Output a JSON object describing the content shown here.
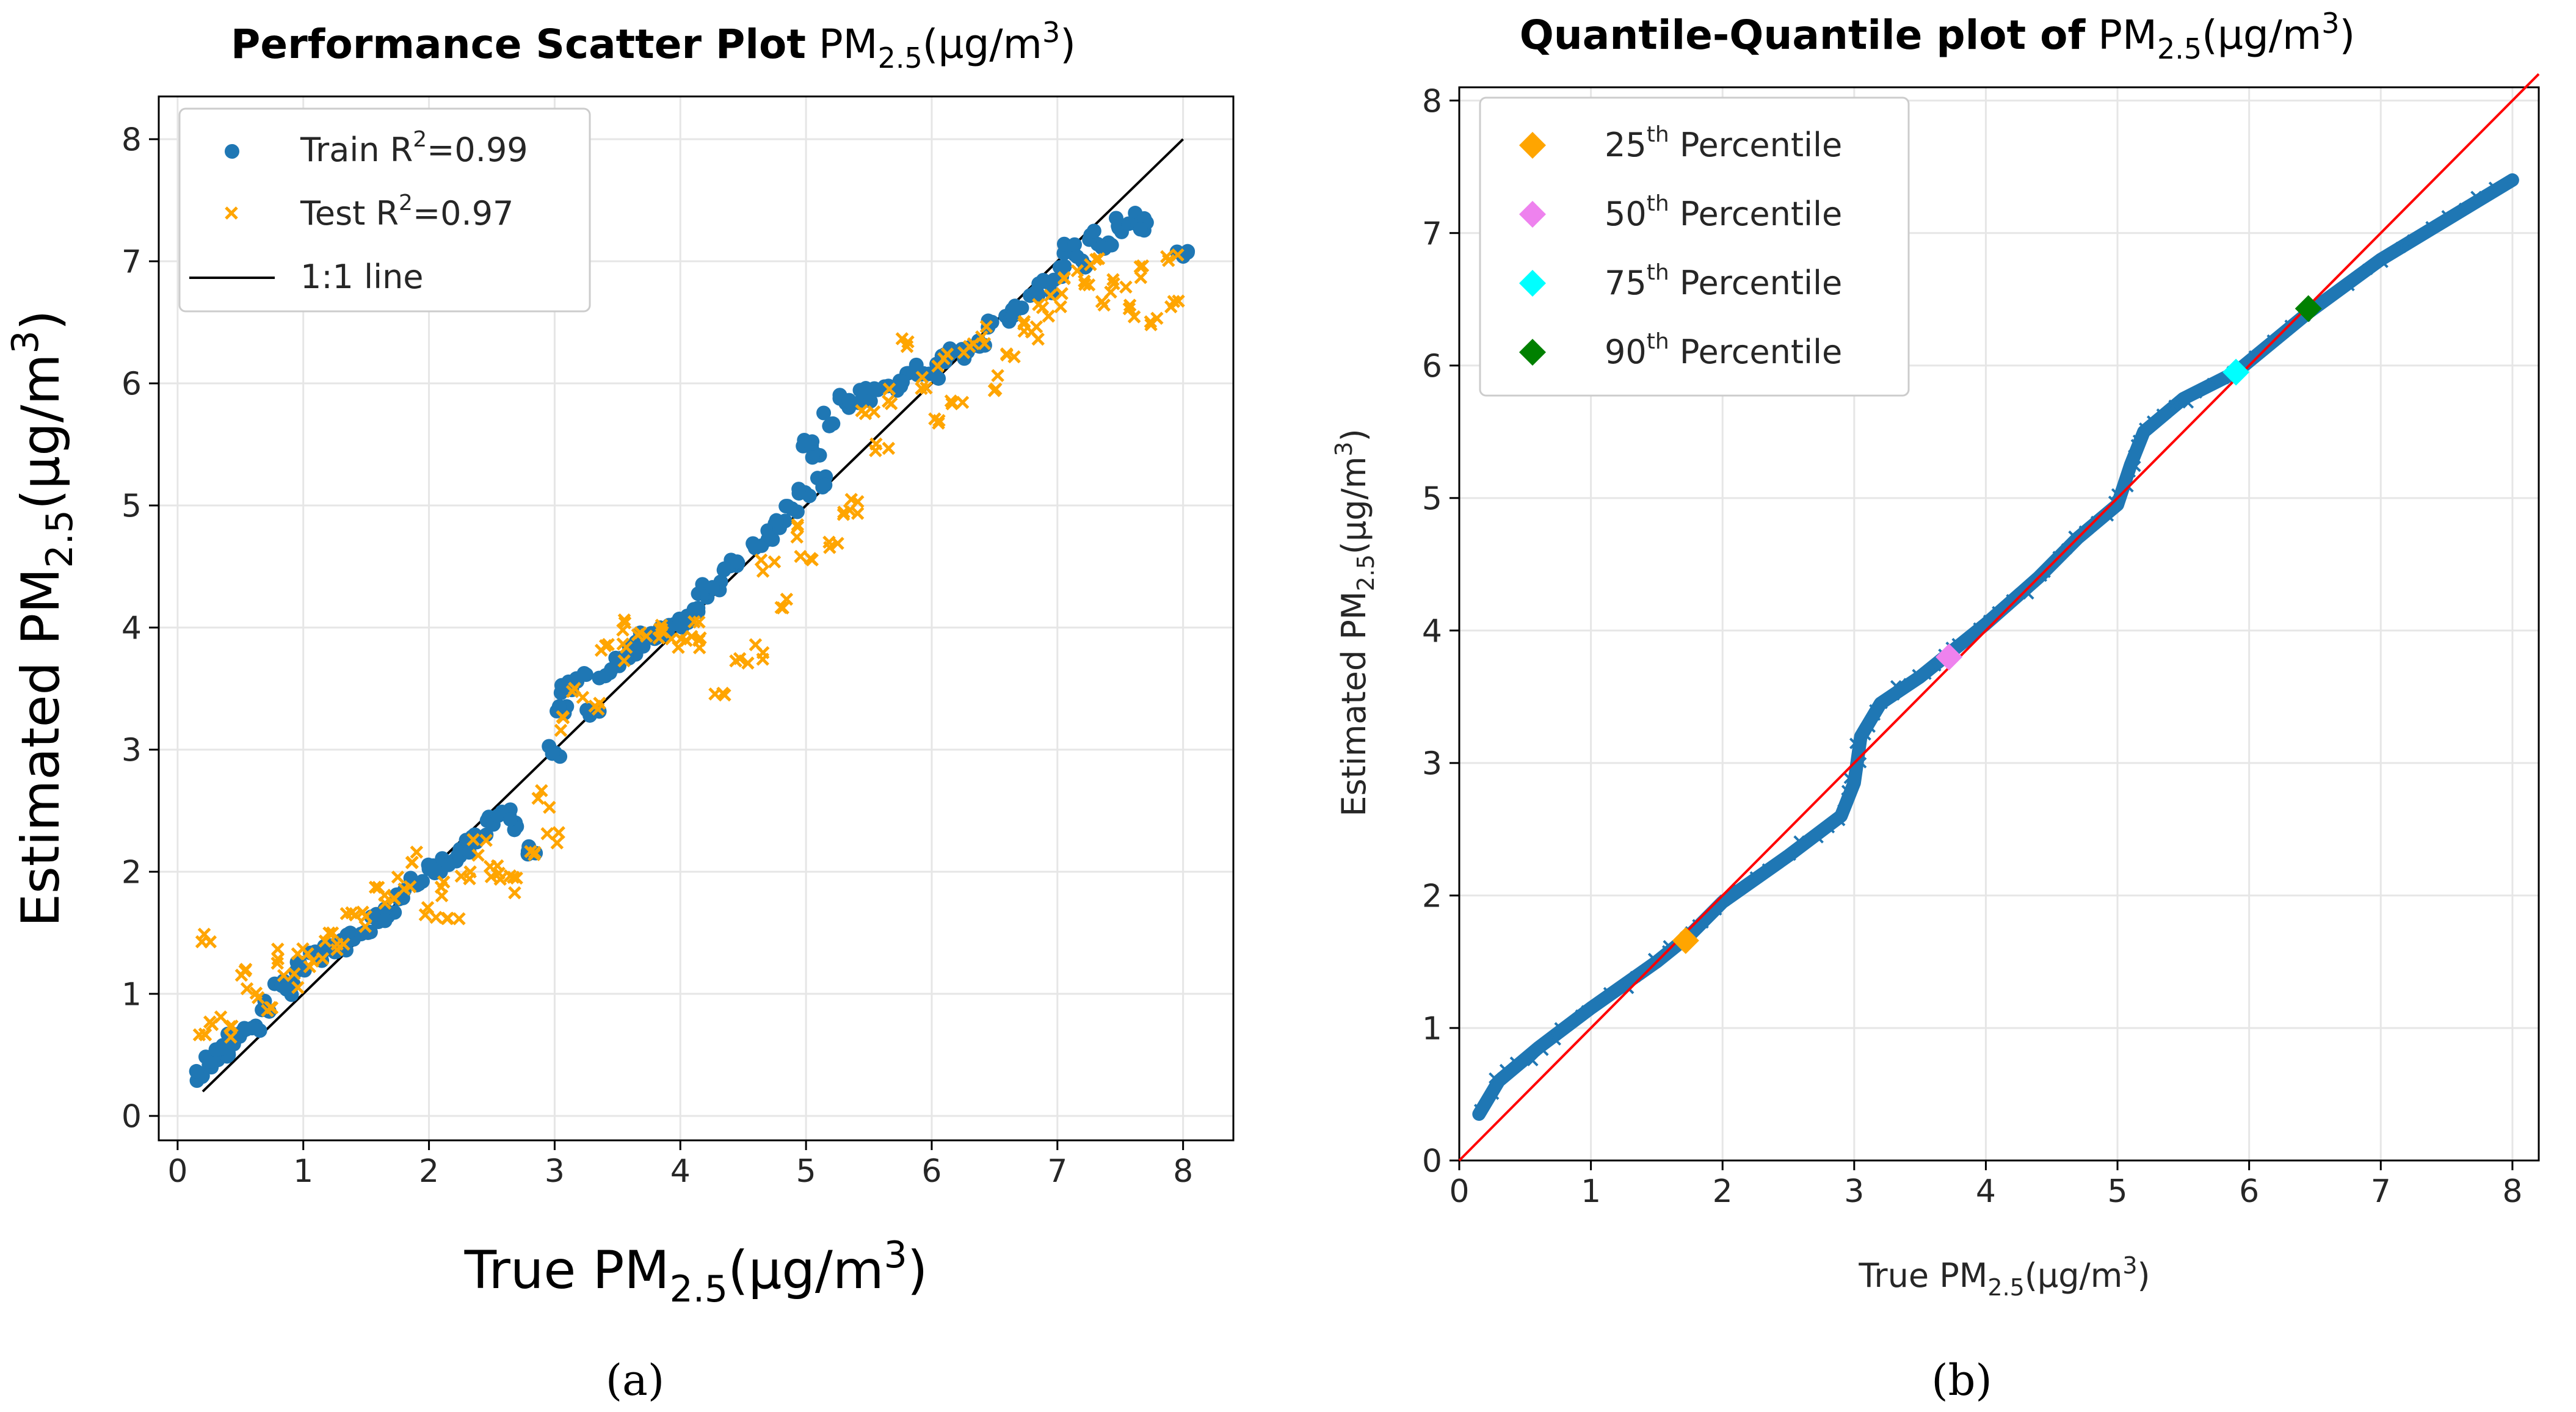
{
  "panels": [
    {
      "id": "a",
      "caption": "(a)",
      "title_bold": "Performance Scatter Plot",
      "xlabel": "True PM",
      "ylabel": "Estimated PM",
      "sub": "2.5",
      "units_prefix": "(µg/m",
      "units_sup": "3",
      "units_suffix": ")"
    },
    {
      "id": "b",
      "caption": "(b)",
      "title_bold": "Quantile-Quantile plot of",
      "xlabel": "True PM",
      "ylabel": "Estimated PM",
      "sub": "2.5",
      "units_prefix": "(µg/m",
      "units_sup": "3",
      "units_suffix": ")"
    }
  ],
  "chart_data": [
    {
      "type": "scatter",
      "title": "Performance Scatter Plot PM2.5(µg/m3)",
      "xlabel": "True PM2.5(µg/m3)",
      "ylabel": "Estimated PM2.5(µg/m3)",
      "xlim": [
        -0.15,
        8.4
      ],
      "ylim": [
        -0.2,
        8.35
      ],
      "xticks": [
        0,
        1,
        2,
        3,
        4,
        5,
        6,
        7,
        8
      ],
      "yticks": [
        0,
        1,
        2,
        3,
        4,
        5,
        6,
        7,
        8
      ],
      "grid": true,
      "legend_position": "top-left",
      "legend": [
        {
          "label": "Train R",
          "sup": "2",
          "suffix": "=0.99",
          "marker": "circle",
          "color": "#1f77b4"
        },
        {
          "label": "Test R",
          "sup": "2",
          "suffix": "=0.97",
          "marker": "x",
          "color": "#ffa500"
        },
        {
          "label": "1:1 line",
          "sup": "",
          "suffix": "",
          "marker": "line",
          "color": "#000000"
        }
      ],
      "series": [
        {
          "name": "Train",
          "color": "#1f77b4",
          "points": [
            [
              0.2,
              0.32
            ],
            [
              0.25,
              0.45
            ],
            [
              0.3,
              0.5
            ],
            [
              0.35,
              0.55
            ],
            [
              0.4,
              0.52
            ],
            [
              0.45,
              0.62
            ],
            [
              0.5,
              0.7
            ],
            [
              0.6,
              0.72
            ],
            [
              0.7,
              0.9
            ],
            [
              0.8,
              1.05
            ],
            [
              0.9,
              1.05
            ],
            [
              1.0,
              1.2
            ],
            [
              1.1,
              1.3
            ],
            [
              1.2,
              1.35
            ],
            [
              1.3,
              1.4
            ],
            [
              1.4,
              1.5
            ],
            [
              1.5,
              1.55
            ],
            [
              1.6,
              1.6
            ],
            [
              1.7,
              1.65
            ],
            [
              1.8,
              1.8
            ],
            [
              1.9,
              1.9
            ],
            [
              2.0,
              2.0
            ],
            [
              2.1,
              2.05
            ],
            [
              2.2,
              2.1
            ],
            [
              2.3,
              2.2
            ],
            [
              2.4,
              2.3
            ],
            [
              2.5,
              2.4
            ],
            [
              2.6,
              2.5
            ],
            [
              2.7,
              2.4
            ],
            [
              2.8,
              2.2
            ],
            [
              3.0,
              3.0
            ],
            [
              3.05,
              3.3
            ],
            [
              3.1,
              3.5
            ],
            [
              3.2,
              3.6
            ],
            [
              3.3,
              3.3
            ],
            [
              3.4,
              3.6
            ],
            [
              3.5,
              3.7
            ],
            [
              3.6,
              3.8
            ],
            [
              3.7,
              3.9
            ],
            [
              3.8,
              3.95
            ],
            [
              3.9,
              4.0
            ],
            [
              4.0,
              4.05
            ],
            [
              4.1,
              4.1
            ],
            [
              4.2,
              4.3
            ],
            [
              4.3,
              4.35
            ],
            [
              4.4,
              4.5
            ],
            [
              4.5,
              4.55
            ],
            [
              4.6,
              4.65
            ],
            [
              4.7,
              4.75
            ],
            [
              4.8,
              4.85
            ],
            [
              4.9,
              5.0
            ],
            [
              5.0,
              5.1
            ],
            [
              5.1,
              5.2
            ],
            [
              5.0,
              5.5
            ],
            [
              5.1,
              5.4
            ],
            [
              5.2,
              5.7
            ],
            [
              5.3,
              5.85
            ],
            [
              5.4,
              5.9
            ],
            [
              5.5,
              5.9
            ],
            [
              5.6,
              5.95
            ],
            [
              5.7,
              6.0
            ],
            [
              5.8,
              6.05
            ],
            [
              5.9,
              6.1
            ],
            [
              6.0,
              6.1
            ],
            [
              6.1,
              6.2
            ],
            [
              6.2,
              6.25
            ],
            [
              6.3,
              6.3
            ],
            [
              6.4,
              6.35
            ],
            [
              6.5,
              6.5
            ],
            [
              6.6,
              6.55
            ],
            [
              6.7,
              6.6
            ],
            [
              6.8,
              6.7
            ],
            [
              6.9,
              6.8
            ],
            [
              7.0,
              6.9
            ],
            [
              7.1,
              7.1
            ],
            [
              7.2,
              7.0
            ],
            [
              7.3,
              7.2
            ],
            [
              7.4,
              7.15
            ],
            [
              7.5,
              7.3
            ],
            [
              7.6,
              7.35
            ],
            [
              7.7,
              7.3
            ],
            [
              8.0,
              7.05
            ]
          ]
        },
        {
          "name": "Test",
          "color": "#ffa500",
          "points": [
            [
              0.2,
              0.6
            ],
            [
              0.25,
              1.45
            ],
            [
              0.3,
              0.8
            ],
            [
              0.4,
              0.7
            ],
            [
              0.5,
              1.2
            ],
            [
              0.6,
              1.0
            ],
            [
              0.7,
              0.9
            ],
            [
              0.8,
              1.3
            ],
            [
              0.9,
              1.1
            ],
            [
              1.0,
              1.4
            ],
            [
              1.1,
              1.25
            ],
            [
              1.2,
              1.5
            ],
            [
              1.3,
              1.4
            ],
            [
              1.4,
              1.7
            ],
            [
              1.5,
              1.6
            ],
            [
              1.6,
              1.8
            ],
            [
              1.7,
              1.75
            ],
            [
              1.8,
              1.9
            ],
            [
              1.9,
              2.1
            ],
            [
              2.0,
              1.7
            ],
            [
              2.1,
              1.85
            ],
            [
              2.2,
              1.6
            ],
            [
              2.3,
              2.0
            ],
            [
              2.4,
              2.2
            ],
            [
              2.5,
              2.0
            ],
            [
              2.6,
              1.95
            ],
            [
              2.7,
              1.9
            ],
            [
              2.8,
              2.1
            ],
            [
              2.9,
              2.6
            ],
            [
              3.0,
              2.3
            ],
            [
              3.1,
              3.2
            ],
            [
              3.2,
              3.5
            ],
            [
              3.3,
              3.4
            ],
            [
              3.4,
              3.8
            ],
            [
              3.5,
              4.05
            ],
            [
              3.6,
              3.8
            ],
            [
              3.7,
              3.9
            ],
            [
              3.8,
              3.95
            ],
            [
              3.9,
              3.95
            ],
            [
              4.0,
              3.9
            ],
            [
              4.1,
              4.0
            ],
            [
              4.2,
              3.9
            ],
            [
              4.3,
              3.5
            ],
            [
              4.5,
              3.7
            ],
            [
              4.6,
              3.8
            ],
            [
              4.7,
              4.5
            ],
            [
              4.8,
              4.2
            ],
            [
              4.9,
              4.8
            ],
            [
              5.0,
              4.6
            ],
            [
              5.2,
              4.65
            ],
            [
              5.3,
              5.0
            ],
            [
              5.4,
              5.0
            ],
            [
              5.5,
              5.8
            ],
            [
              5.6,
              5.5
            ],
            [
              5.7,
              5.9
            ],
            [
              5.8,
              6.3
            ],
            [
              5.9,
              6.0
            ],
            [
              6.0,
              5.7
            ],
            [
              6.1,
              6.2
            ],
            [
              6.2,
              5.9
            ],
            [
              6.3,
              6.3
            ],
            [
              6.4,
              6.4
            ],
            [
              6.5,
              6.0
            ],
            [
              6.6,
              6.2
            ],
            [
              6.7,
              6.5
            ],
            [
              6.8,
              6.4
            ],
            [
              6.9,
              6.6
            ],
            [
              7.0,
              6.7
            ],
            [
              7.1,
              6.9
            ],
            [
              7.2,
              6.8
            ],
            [
              7.3,
              6.95
            ],
            [
              7.4,
              6.7
            ],
            [
              7.5,
              6.8
            ],
            [
              7.6,
              6.6
            ],
            [
              7.7,
              6.9
            ],
            [
              7.8,
              6.55
            ],
            [
              7.9,
              7.05
            ],
            [
              7.95,
              6.65
            ]
          ]
        }
      ],
      "reference_line": {
        "from": [
          0.2,
          0.2
        ],
        "to": [
          8.0,
          8.0
        ],
        "color": "#000000"
      }
    },
    {
      "type": "scatter",
      "title": "Quantile-Quantile plot of PM2.5(µg/m3)",
      "xlabel": "True PM2.5(µg/m3)",
      "ylabel": "Estimated PM2.5(µg/m3)",
      "xlim": [
        0,
        8.2
      ],
      "ylim": [
        0,
        8.1
      ],
      "xticks": [
        0,
        1,
        2,
        3,
        4,
        5,
        6,
        7,
        8
      ],
      "yticks": [
        0,
        1,
        2,
        3,
        4,
        5,
        6,
        7,
        8
      ],
      "grid": true,
      "legend_position": "top-left",
      "quantile_curve": {
        "color": "#1f77b4",
        "points": [
          [
            0.15,
            0.35
          ],
          [
            0.3,
            0.6
          ],
          [
            0.6,
            0.85
          ],
          [
            1.0,
            1.15
          ],
          [
            1.5,
            1.5
          ],
          [
            1.75,
            1.7
          ],
          [
            2.0,
            1.95
          ],
          [
            2.5,
            2.3
          ],
          [
            2.9,
            2.6
          ],
          [
            3.0,
            2.85
          ],
          [
            3.05,
            3.2
          ],
          [
            3.2,
            3.45
          ],
          [
            3.5,
            3.65
          ],
          [
            3.75,
            3.85
          ],
          [
            4.0,
            4.05
          ],
          [
            4.4,
            4.4
          ],
          [
            4.7,
            4.7
          ],
          [
            5.0,
            4.95
          ],
          [
            5.1,
            5.25
          ],
          [
            5.2,
            5.5
          ],
          [
            5.5,
            5.75
          ],
          [
            5.9,
            5.95
          ],
          [
            6.45,
            6.4
          ],
          [
            7.0,
            6.8
          ],
          [
            7.5,
            7.1
          ],
          [
            8.0,
            7.4
          ]
        ]
      },
      "reference_line": {
        "from": [
          0,
          0
        ],
        "to": [
          8.2,
          8.2
        ],
        "color": "#ff0000"
      },
      "percentiles": [
        {
          "label": "25",
          "sup": "th",
          "suffix": " Percentile",
          "x": 1.72,
          "y": 1.66,
          "color": "#ffa500"
        },
        {
          "label": "50",
          "sup": "th",
          "suffix": " Percentile",
          "x": 3.72,
          "y": 3.8,
          "color": "#ee82ee"
        },
        {
          "label": "75",
          "sup": "th",
          "suffix": " Percentile",
          "x": 5.9,
          "y": 5.95,
          "color": "#00ffff"
        },
        {
          "label": "90",
          "sup": "th",
          "suffix": " Percentile",
          "x": 6.45,
          "y": 6.43,
          "color": "#008000"
        }
      ]
    }
  ]
}
